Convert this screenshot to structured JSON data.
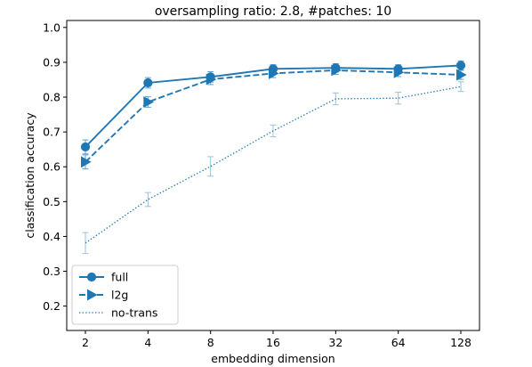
{
  "chart_data": {
    "type": "line",
    "title": "oversampling ratio: 2.8, #patches: 10",
    "xlabel": "embedding dimension",
    "ylabel": "classification accuracy",
    "categories": [
      "2",
      "4",
      "8",
      "16",
      "32",
      "64",
      "128"
    ],
    "ylim": [
      0.13,
      1.02
    ],
    "yticks": [
      0.2,
      0.3,
      0.4,
      0.5,
      0.6,
      0.7,
      0.8,
      0.9,
      1.0
    ],
    "ytick_labels": [
      "0.2",
      "0.3",
      "0.4",
      "0.5",
      "0.6",
      "0.7",
      "0.8",
      "0.9",
      "1.0"
    ],
    "grid": false,
    "legend_position": "lower-left",
    "color": "#1f77b4",
    "series": [
      {
        "name": "full",
        "linestyle": "solid",
        "marker": "circle",
        "values": [
          0.657,
          0.841,
          0.858,
          0.881,
          0.884,
          0.881,
          0.891
        ],
        "errors": [
          0.02,
          0.015,
          0.015,
          0.012,
          0.012,
          0.012,
          0.013
        ]
      },
      {
        "name": "l2g",
        "linestyle": "dashed",
        "marker": "triangle-right",
        "values": [
          0.614,
          0.786,
          0.851,
          0.868,
          0.877,
          0.871,
          0.864
        ],
        "errors": [
          0.02,
          0.015,
          0.015,
          0.012,
          0.012,
          0.012,
          0.013
        ]
      },
      {
        "name": "no-trans",
        "linestyle": "dotted",
        "marker": "none",
        "values": [
          0.381,
          0.506,
          0.601,
          0.703,
          0.795,
          0.797,
          0.83
        ],
        "errors": [
          0.03,
          0.02,
          0.028,
          0.017,
          0.017,
          0.017,
          0.014
        ]
      }
    ]
  }
}
